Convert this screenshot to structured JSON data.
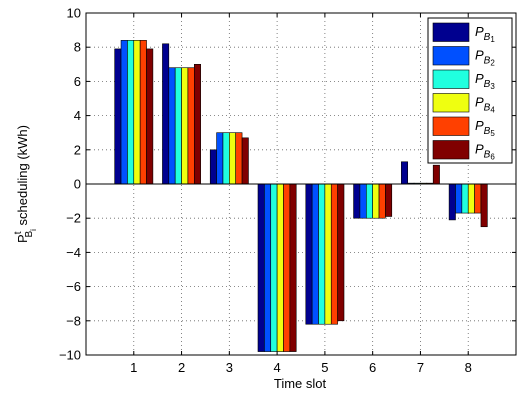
{
  "chart_data": {
    "type": "bar",
    "xlabel": "Time slot",
    "ylabel_main": "P",
    "ylabel_sup": "t",
    "ylabel_sub": "B",
    "ylabel_subsub": "i",
    "ylabel_rest": " scheduling (kWh)",
    "categories": [
      "1",
      "2",
      "3",
      "4",
      "5",
      "6",
      "7",
      "8"
    ],
    "ylim": [
      -10,
      10
    ],
    "yticks": [
      -10,
      -8,
      -6,
      -4,
      -2,
      0,
      2,
      4,
      6,
      8,
      10
    ],
    "ytick_labels": [
      "−10",
      "−8",
      "−6",
      "−4",
      "−2",
      "0",
      "2",
      "4",
      "6",
      "8",
      "10"
    ],
    "grid": true,
    "legend_position": "top-right",
    "series": [
      {
        "name": "P",
        "sub": "B",
        "subsub": "1",
        "color": "#00008f",
        "values": [
          7.9,
          8.2,
          2.0,
          -9.8,
          -8.2,
          -2.0,
          1.3,
          -2.1
        ]
      },
      {
        "name": "P",
        "sub": "B",
        "subsub": "2",
        "color": "#0050ff",
        "values": [
          8.4,
          6.8,
          3.0,
          -9.8,
          -8.2,
          -2.0,
          0.05,
          -1.7
        ]
      },
      {
        "name": "P",
        "sub": "B",
        "subsub": "3",
        "color": "#20ffdf",
        "values": [
          8.4,
          6.8,
          3.0,
          -9.8,
          -8.2,
          -2.0,
          0.05,
          -1.7
        ]
      },
      {
        "name": "P",
        "sub": "B",
        "subsub": "4",
        "color": "#efff10",
        "values": [
          8.4,
          6.8,
          3.0,
          -9.8,
          -8.2,
          -2.0,
          0.05,
          -1.7
        ]
      },
      {
        "name": "P",
        "sub": "B",
        "subsub": "5",
        "color": "#ff4000",
        "values": [
          8.4,
          6.8,
          3.0,
          -9.8,
          -8.2,
          -2.0,
          0.05,
          -1.7
        ]
      },
      {
        "name": "P",
        "sub": "B",
        "subsub": "6",
        "color": "#800000",
        "values": [
          7.9,
          7.0,
          2.7,
          -9.8,
          -8.0,
          -1.9,
          1.1,
          -2.5
        ]
      }
    ]
  }
}
